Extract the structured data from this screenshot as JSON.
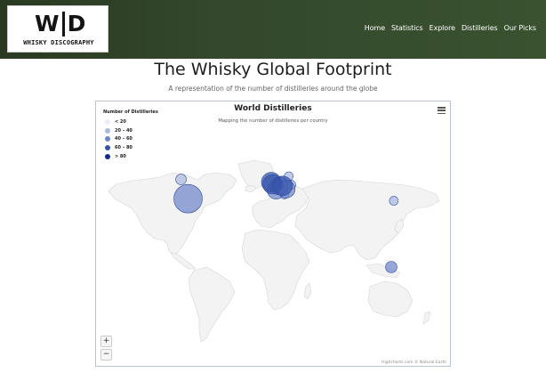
{
  "navbar": {
    "logo_mark": {
      "left": "W",
      "right": "D"
    },
    "logo_subtitle": "WHISKY DISCOGRAPHY",
    "links": [
      "Home",
      "Statistics",
      "Explore",
      "Distilleries",
      "Our Picks"
    ],
    "background_color": "#33482c"
  },
  "page": {
    "title": "The Whisky Global Footprint",
    "subtitle": "A representation of the number of distilleries around the globe"
  },
  "chart": {
    "title": "World Distilleries",
    "subtitle": "Mapping the number of distilleries per country",
    "menu_icon": "hamburger-menu-icon",
    "legend": {
      "title": "Number of Distilleries",
      "items": [
        {
          "label": "< 20",
          "color": "#e8ecf6"
        },
        {
          "label": "20 – 40",
          "color": "#a9b9e0"
        },
        {
          "label": "40 – 60",
          "color": "#6f86c9"
        },
        {
          "label": "60 – 80",
          "color": "#3754ab"
        },
        {
          "label": "> 80",
          "color": "#0f2a88"
        }
      ]
    },
    "zoom_in": "+",
    "zoom_out": "−",
    "credits": "Highcharts.com © Natural Earth"
  },
  "chart_data": {
    "type": "bubble-map",
    "title": "World Distilleries",
    "subtitle": "Mapping the number of distilleries per country",
    "legend_title": "Number of Distilleries",
    "legend_placement": "top-left",
    "classes": [
      "< 20",
      "20 – 40",
      "40 – 60",
      "60 – 80",
      "> 80"
    ],
    "points": [
      {
        "lon": -98,
        "lat": 39,
        "class": "40 – 60"
      },
      {
        "lon": -106,
        "lat": 57,
        "class": "20 – 40"
      },
      {
        "lon": -3,
        "lat": 54.5,
        "class": "60 – 80"
      },
      {
        "lon": -1.5,
        "lat": 52.5,
        "class": "60 – 80"
      },
      {
        "lon": 2.5,
        "lat": 47,
        "class": "40 – 60"
      },
      {
        "lon": 6,
        "lat": 51,
        "class": "40 – 60"
      },
      {
        "lon": 10,
        "lat": 51,
        "class": "60 – 80"
      },
      {
        "lon": 14,
        "lat": 48,
        "class": "40 – 60"
      },
      {
        "lon": 17,
        "lat": 60,
        "class": "20 – 40"
      },
      {
        "lon": 20,
        "lat": 52,
        "class": "20 – 40"
      },
      {
        "lon": 12,
        "lat": 43,
        "class": "20 – 40"
      },
      {
        "lon": 137,
        "lat": 37,
        "class": "20 – 40"
      },
      {
        "lon": 134,
        "lat": -25,
        "class": "40 – 60"
      }
    ]
  }
}
